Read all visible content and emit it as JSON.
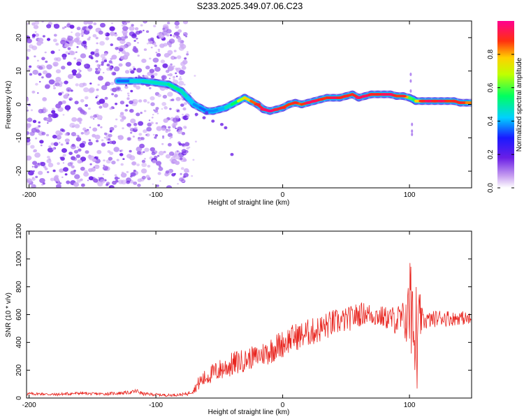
{
  "title": "S233.2025.349.07.06.C23",
  "colorbar": {
    "label": "Normalized spectral amplitude",
    "ticks": [
      "0.0",
      "0.2",
      "0.4",
      "0.6",
      "0.8"
    ],
    "tick_values": [
      0.0,
      0.2,
      0.4,
      0.6,
      0.8
    ],
    "range": [
      0,
      1
    ]
  },
  "chart_data": [
    {
      "type": "heatmap",
      "title": "S233.2025.349.07.06.C23",
      "xlabel": "Height of straight line (km)",
      "ylabel": "Frequency (Hz)",
      "xlim": [
        -202,
        149
      ],
      "ylim": [
        -25,
        25
      ],
      "xticks": [
        -200,
        -100,
        0,
        100
      ],
      "xtick_labels": [
        "-200",
        "-100",
        "0",
        "100"
      ],
      "yticks": [
        -20,
        -10,
        0,
        10,
        20
      ],
      "ytick_labels": [
        "-20",
        "-10",
        "0",
        "10",
        "20"
      ],
      "noise_region_x": [
        -202,
        -78
      ],
      "signal_track": {
        "x": [
          -130,
          -120,
          -110,
          -100,
          -90,
          -85,
          -80,
          -75,
          -70,
          -65,
          -60,
          -55,
          -50,
          -45,
          -40,
          -35,
          -30,
          -25,
          -20,
          -15,
          -10,
          -5,
          0,
          5,
          10,
          15,
          20,
          25,
          30,
          35,
          40,
          45,
          50,
          55,
          60,
          65,
          70,
          75,
          80,
          85,
          90,
          95,
          100,
          103,
          105,
          110,
          115,
          120,
          125,
          130,
          135,
          140,
          145,
          149
        ],
        "frequency": [
          7,
          7,
          7,
          6.5,
          6,
          5,
          4,
          2,
          0,
          -1,
          -2,
          -2,
          -1.5,
          -1,
          0,
          1,
          2,
          1,
          0,
          -1.5,
          -2,
          -1.5,
          -1,
          0,
          0.5,
          0,
          0.5,
          1,
          1.5,
          2,
          2,
          2,
          2.5,
          3,
          2,
          2.5,
          3,
          3,
          3,
          3,
          2.5,
          2.5,
          2,
          1.5,
          1,
          1,
          1,
          1,
          1,
          1,
          1,
          0.5,
          0.5,
          0.5
        ],
        "amplitude": [
          0.3,
          0.4,
          0.5,
          0.45,
          0.5,
          0.55,
          0.5,
          0.45,
          0.4,
          0.35,
          0.35,
          0.4,
          0.35,
          0.45,
          0.5,
          0.6,
          0.75,
          0.8,
          0.9,
          0.95,
          0.98,
          0.92,
          0.9,
          0.85,
          0.9,
          0.8,
          0.95,
          0.95,
          0.9,
          0.85,
          0.95,
          0.9,
          0.9,
          0.85,
          0.95,
          0.95,
          0.9,
          0.9,
          0.95,
          0.95,
          0.85,
          0.9,
          0.7,
          0.5,
          0.65,
          0.9,
          0.95,
          0.9,
          0.95,
          0.85,
          0.9,
          0.9,
          0.85,
          0.8
        ]
      }
    },
    {
      "type": "line",
      "xlabel": "Height of straight line (km)",
      "ylabel": "SNR (10 * v/v)",
      "xlim": [
        -202,
        149
      ],
      "ylim": [
        0,
        1200
      ],
      "xticks": [
        -200,
        -100,
        0,
        100
      ],
      "xtick_labels": [
        "-200",
        "-100",
        "0",
        "100"
      ],
      "yticks": [
        0,
        200,
        400,
        600,
        800,
        1000,
        1200
      ],
      "ytick_labels": [
        "0",
        "200",
        "400",
        "600",
        "800",
        "1000",
        "1200"
      ],
      "series": [
        {
          "name": "SNR",
          "color": "#e8241e",
          "x": [
            -202,
            -190,
            -180,
            -170,
            -160,
            -150,
            -140,
            -130,
            -120,
            -115,
            -110,
            -100,
            -90,
            -80,
            -75,
            -70,
            -65,
            -60,
            -55,
            -50,
            -45,
            -40,
            -35,
            -30,
            -25,
            -20,
            -15,
            -10,
            -5,
            0,
            5,
            10,
            15,
            20,
            25,
            30,
            35,
            40,
            45,
            50,
            55,
            60,
            65,
            70,
            75,
            80,
            85,
            90,
            95,
            100,
            103,
            105,
            108,
            110,
            115,
            120,
            125,
            130,
            135,
            140,
            145,
            149
          ],
          "values": [
            30,
            30,
            25,
            30,
            35,
            30,
            30,
            35,
            40,
            50,
            30,
            25,
            20,
            25,
            30,
            60,
            120,
            150,
            180,
            200,
            220,
            240,
            260,
            270,
            290,
            300,
            320,
            340,
            370,
            390,
            420,
            440,
            450,
            470,
            480,
            500,
            520,
            540,
            550,
            560,
            580,
            600,
            610,
            600,
            590,
            580,
            570,
            560,
            560,
            600,
            700,
            300,
            580,
            560,
            560,
            570,
            580,
            575,
            570,
            580,
            570,
            560
          ],
          "noise_amplitude": [
            12,
            10,
            10,
            12,
            10,
            10,
            10,
            12,
            12,
            18,
            12,
            10,
            10,
            10,
            12,
            25,
            60,
            60,
            70,
            80,
            80,
            90,
            90,
            80,
            80,
            80,
            90,
            100,
            100,
            100,
            100,
            100,
            100,
            100,
            100,
            100,
            100,
            100,
            90,
            90,
            90,
            90,
            80,
            80,
            80,
            80,
            90,
            110,
            140,
            250,
            450,
            300,
            200,
            80,
            60,
            60,
            60,
            60,
            50,
            50,
            50,
            50
          ]
        }
      ]
    }
  ]
}
